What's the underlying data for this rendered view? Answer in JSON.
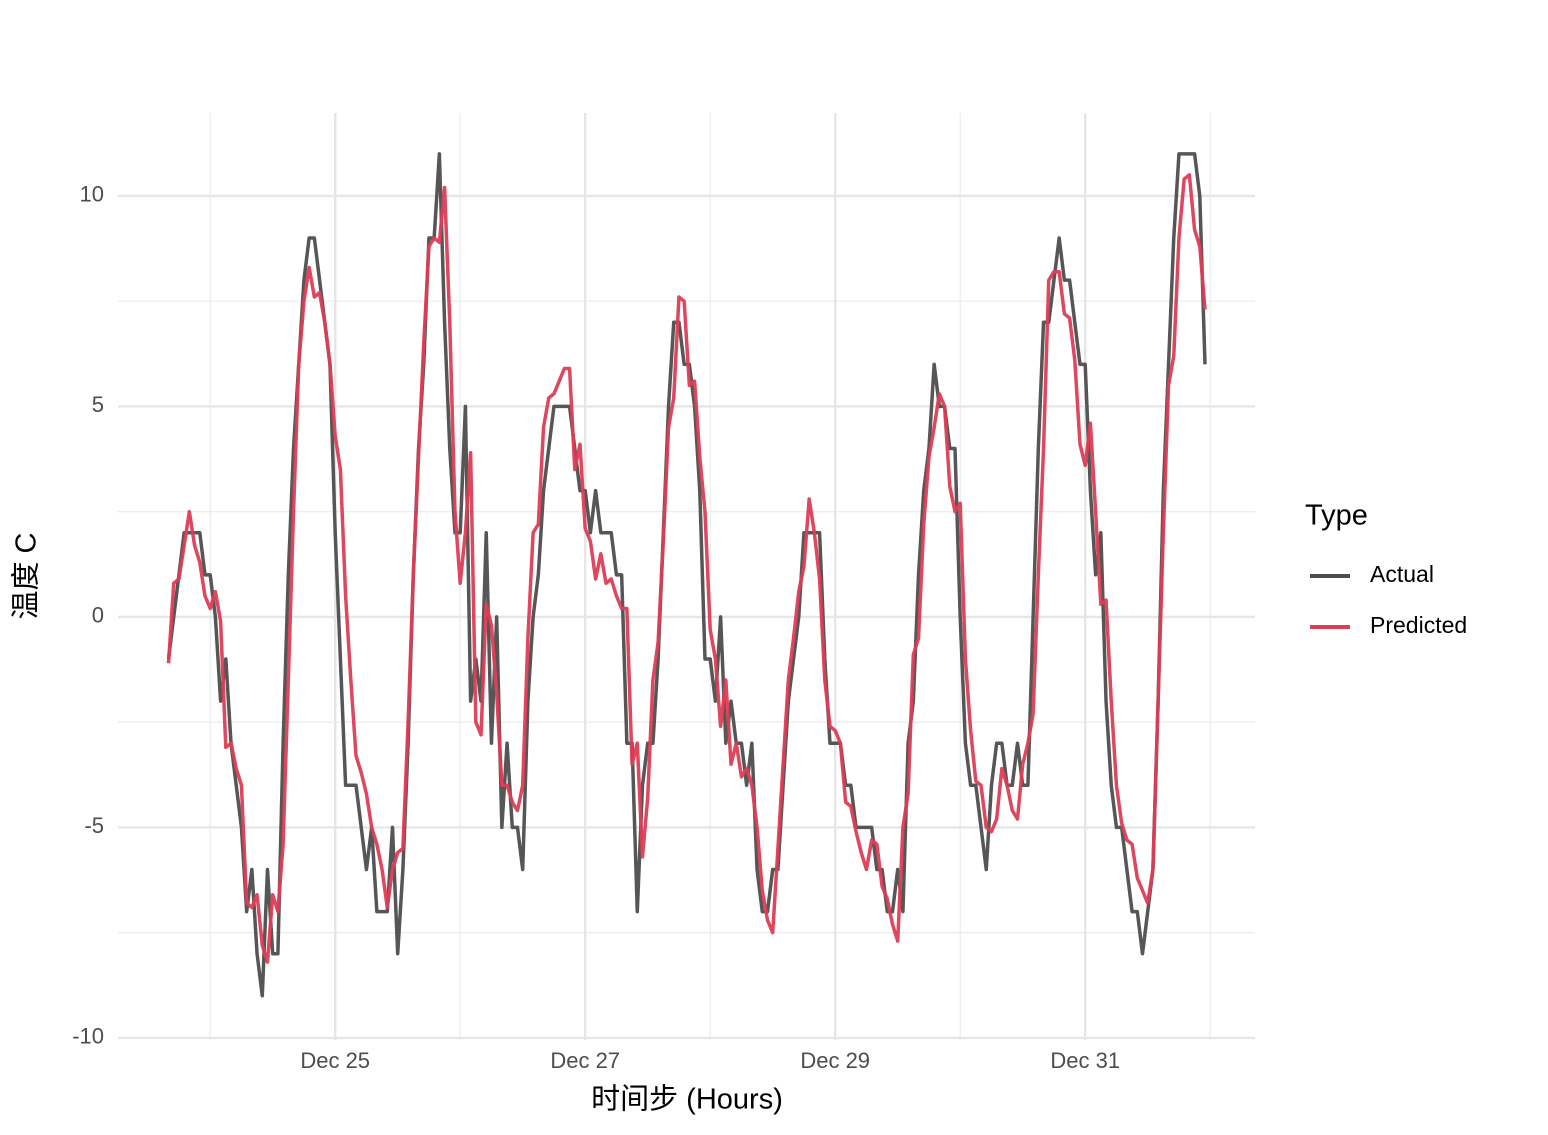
{
  "chart_data": {
    "type": "line",
    "y_label": "温度 C",
    "x_label": "时间步 (Hours)",
    "legend_title": "Type",
    "legend_position": "right",
    "grid": true,
    "x": [
      16,
      17,
      18,
      19,
      20,
      21,
      22,
      23,
      24,
      25,
      26,
      27,
      28,
      29,
      30,
      31,
      32,
      33,
      34,
      35,
      36,
      37,
      38,
      39,
      40,
      41,
      42,
      43,
      44,
      45,
      46,
      47,
      48,
      49,
      50,
      51,
      52,
      53,
      54,
      55,
      56,
      57,
      58,
      59,
      60,
      61,
      62,
      63,
      64,
      65,
      66,
      67,
      68,
      69,
      70,
      71,
      72,
      73,
      74,
      75,
      76,
      77,
      78,
      79,
      80,
      81,
      82,
      83,
      84,
      85,
      86,
      87,
      88,
      89,
      90,
      91,
      92,
      93,
      94,
      95,
      96,
      97,
      98,
      99,
      100,
      101,
      102,
      103,
      104,
      105,
      106,
      107,
      108,
      109,
      110,
      111,
      112,
      113,
      114,
      115,
      116,
      117,
      118,
      119,
      120,
      121,
      122,
      123,
      124,
      125,
      126,
      127,
      128,
      129,
      130,
      131,
      132,
      133,
      134,
      135,
      136,
      137,
      138,
      139,
      140,
      141,
      142,
      143,
      144,
      145,
      146,
      147,
      148,
      149,
      150,
      151,
      152,
      153,
      154,
      155,
      156,
      157,
      158,
      159,
      160,
      161,
      162,
      163,
      164,
      165,
      166,
      167,
      168,
      169,
      170,
      171,
      172,
      173,
      174,
      175,
      176,
      177,
      178,
      179,
      180,
      181,
      182,
      183,
      184,
      185,
      186,
      187,
      188,
      189,
      190,
      191,
      192,
      193,
      194,
      195,
      196,
      197,
      198,
      199,
      200,
      201,
      202,
      203,
      204,
      205,
      206,
      207,
      208,
      209,
      210,
      211,
      212,
      213,
      214,
      215
    ],
    "series": [
      {
        "name": "Actual",
        "color": "#4d4d4d",
        "values": [
          -1,
          0,
          1,
          2,
          2,
          2,
          2,
          1,
          1,
          0,
          -2,
          -1,
          -3,
          -4,
          -5,
          -7,
          -6,
          -8,
          -9,
          -6,
          -8,
          -8,
          -3,
          1,
          4,
          6,
          8,
          9,
          9,
          8,
          7,
          6,
          2,
          -1,
          -4,
          -4,
          -4,
          -5,
          -6,
          -5,
          -7,
          -7,
          -7,
          -5,
          -8,
          -6,
          -3,
          1,
          4,
          6,
          9,
          9,
          11,
          7,
          4,
          2,
          2,
          5,
          -2,
          -1,
          -2,
          2,
          -3,
          0,
          -5,
          -3,
          -5,
          -5,
          -6,
          -2,
          0,
          1,
          3,
          4,
          5,
          5,
          5,
          5,
          4,
          3,
          3,
          2,
          3,
          2,
          2,
          2,
          1,
          1,
          -3,
          -3,
          -7,
          -4,
          -3,
          -3,
          -1,
          2,
          5,
          7,
          7,
          6,
          6,
          5,
          3,
          -1,
          -1,
          -2,
          0,
          -3,
          -2,
          -3,
          -3,
          -4,
          -3,
          -6,
          -7,
          -7,
          -6,
          -6,
          -4,
          -2,
          -1,
          0,
          2,
          2,
          2,
          2,
          -1,
          -3,
          -3,
          -3,
          -4,
          -4,
          -5,
          -5,
          -5,
          -5,
          -6,
          -6,
          -7,
          -7,
          -6,
          -7,
          -3,
          -2,
          1,
          3,
          4,
          6,
          5,
          5,
          4,
          4,
          0,
          -3,
          -4,
          -4,
          -5,
          -6,
          -4,
          -3,
          -3,
          -4,
          -4,
          -3,
          -4,
          -4,
          0,
          4,
          7,
          7,
          8,
          9,
          8,
          8,
          7,
          6,
          6,
          3,
          1,
          2,
          -2,
          -4,
          -5,
          -5,
          -6,
          -7,
          -7,
          -8,
          -7,
          -6,
          -2,
          3,
          6,
          9,
          11,
          11,
          11,
          11,
          10,
          6
        ]
      },
      {
        "name": "Predicted",
        "color": "#dc3d55",
        "values": [
          -1.1,
          0.8,
          0.9,
          1.7,
          2.5,
          1.7,
          1.3,
          0.5,
          0.2,
          0.6,
          -0.1,
          -3.1,
          -3.0,
          -3.6,
          -4.0,
          -6.8,
          -6.9,
          -6.6,
          -7.8,
          -8.2,
          -6.6,
          -7.0,
          -5.4,
          -1.5,
          2.5,
          6.0,
          7.5,
          8.3,
          7.6,
          7.7,
          7.0,
          6.0,
          4.3,
          3.5,
          0.5,
          -1.5,
          -3.3,
          -3.7,
          -4.2,
          -5.0,
          -5.4,
          -6.0,
          -6.9,
          -6.0,
          -5.6,
          -5.5,
          -2.5,
          1.0,
          3.8,
          6.5,
          8.8,
          9.0,
          8.9,
          10.2,
          7.0,
          2.5,
          0.8,
          2.0,
          3.9,
          -2.5,
          -2.8,
          0.3,
          -0.2,
          -1.8,
          -4.0,
          -4.0,
          -4.4,
          -4.6,
          -4.0,
          -0.5,
          2.0,
          2.2,
          4.5,
          5.2,
          5.3,
          5.6,
          5.9,
          5.9,
          3.5,
          4.1,
          2.1,
          1.8,
          0.9,
          1.5,
          0.8,
          0.9,
          0.5,
          0.2,
          0.2,
          -3.5,
          -3.0,
          -5.7,
          -4.3,
          -1.5,
          -0.6,
          1.8,
          4.5,
          5.2,
          7.6,
          7.5,
          5.5,
          5.6,
          3.8,
          2.5,
          -0.3,
          -1.0,
          -2.6,
          -1.5,
          -3.5,
          -3.0,
          -3.8,
          -3.6,
          -4.0,
          -5.0,
          -6.5,
          -7.2,
          -7.5,
          -5.5,
          -3.5,
          -1.5,
          -0.5,
          0.6,
          1.2,
          2.8,
          2.0,
          0.9,
          -1.5,
          -2.6,
          -2.7,
          -3.0,
          -4.4,
          -4.5,
          -5.1,
          -5.6,
          -6.0,
          -5.3,
          -5.4,
          -6.4,
          -6.7,
          -7.3,
          -7.7,
          -5.0,
          -4.2,
          -0.9,
          -0.5,
          2.2,
          3.8,
          4.5,
          5.3,
          5.0,
          3.1,
          2.5,
          2.7,
          -1.0,
          -2.7,
          -3.9,
          -4.0,
          -5.0,
          -5.1,
          -4.8,
          -3.6,
          -4.0,
          -4.6,
          -4.8,
          -3.5,
          -3.0,
          -2.3,
          1.0,
          4.0,
          8.0,
          8.2,
          8.2,
          7.2,
          7.1,
          6.1,
          4.1,
          3.6,
          4.6,
          2.5,
          0.3,
          0.4,
          -2.0,
          -4.0,
          -4.9,
          -5.3,
          -5.4,
          -6.2,
          -6.5,
          -6.8,
          -6.0,
          -2.0,
          2.0,
          5.5,
          6.2,
          9.0,
          10.4,
          10.5,
          9.2,
          8.8,
          7.3
        ]
      }
    ],
    "xlim": [
      6.3,
      224.6
    ],
    "xticks": [
      {
        "value": 48,
        "label": "Dec 25"
      },
      {
        "value": 96,
        "label": "Dec 27"
      },
      {
        "value": 144,
        "label": "Dec 29"
      },
      {
        "value": 192,
        "label": "Dec 31"
      }
    ],
    "xminor": [
      24,
      72,
      120,
      168,
      216
    ],
    "ylim": [
      -10.05,
      11.97
    ],
    "yticks": [
      -10,
      -5,
      0,
      5,
      10
    ],
    "yminor": [
      -7.5,
      -2.5,
      2.5,
      7.5
    ]
  }
}
